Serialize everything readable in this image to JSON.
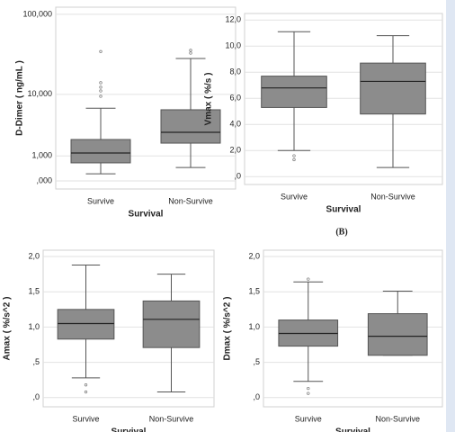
{
  "chart_data": [
    {
      "type": "box",
      "caption": null,
      "x_label": "Survival",
      "y_label": "D-Dimer ( ng/mL )",
      "categories": [
        "Survive",
        "Non-Survive"
      ],
      "yscale": "log",
      "ylim": [
        -200,
        122000
      ],
      "yticks": [
        {
          "value": 0,
          "label": ",000"
        },
        {
          "value": 1000,
          "label": "1,000"
        },
        {
          "value": 10000,
          "label": "10,000"
        },
        {
          "value": 100000,
          "label": "100,000"
        }
      ],
      "grid": true,
      "color": "#8c8c8c",
      "boxes": [
        {
          "min": 220,
          "q1": 650,
          "median": 1170,
          "q3": 2150,
          "max": 6500,
          "outliers": [
            9420,
            11100,
            12400,
            14170,
            35000
          ]
        },
        {
          "min": 450,
          "q1": 1850,
          "median": 2850,
          "q3": 6180,
          "max": 28700,
          "outliers": [
            33500,
            36240
          ]
        }
      ]
    },
    {
      "type": "box",
      "caption": "(B)",
      "x_label": "Survival",
      "y_label": "Vmax ( %/s )",
      "categories": [
        "Survive",
        "Non-Survive"
      ],
      "ylim": [
        -0.6,
        12.5
      ],
      "yticks": [
        {
          "value": 0,
          "label": ",0"
        },
        {
          "value": 2,
          "label": "2,0"
        },
        {
          "value": 4,
          "label": "4,0"
        },
        {
          "value": 6,
          "label": "6,0"
        },
        {
          "value": 8,
          "label": "8,0"
        },
        {
          "value": 10,
          "label": "10,0"
        },
        {
          "value": 12,
          "label": "12,0"
        }
      ],
      "grid": true,
      "color": "#8c8c8c",
      "boxes": [
        {
          "min": 2.0,
          "q1": 5.3,
          "median": 6.8,
          "q3": 7.7,
          "max": 11.1,
          "outliers": [
            1.3,
            1.6
          ]
        },
        {
          "min": 0.7,
          "q1": 4.8,
          "median": 7.3,
          "q3": 8.7,
          "max": 10.8,
          "outliers": []
        }
      ]
    },
    {
      "type": "box",
      "caption": null,
      "x_label": "Survival",
      "y_label": "Amax ( %/s^2 )",
      "categories": [
        "Survive",
        "Non-Survive"
      ],
      "ylim": [
        -0.13,
        2.09
      ],
      "yticks": [
        {
          "value": 0,
          "label": ",0"
        },
        {
          "value": 0.5,
          "label": ",5"
        },
        {
          "value": 1,
          "label": "1,0"
        },
        {
          "value": 1.5,
          "label": "1,5"
        },
        {
          "value": 2,
          "label": "2,0"
        }
      ],
      "grid": true,
      "color": "#8c8c8c",
      "boxes": [
        {
          "min": 0.28,
          "q1": 0.83,
          "median": 1.05,
          "q3": 1.25,
          "max": 1.88,
          "outliers": [
            0.08,
            0.18
          ]
        },
        {
          "min": 0.08,
          "q1": 0.71,
          "median": 1.11,
          "q3": 1.37,
          "max": 1.75,
          "outliers": []
        }
      ]
    },
    {
      "type": "box",
      "caption": null,
      "x_label": "Survival",
      "y_label": "Dmax ( %/s^2 )",
      "categories": [
        "Survive",
        "Non-Survive"
      ],
      "ylim": [
        -0.13,
        2.09
      ],
      "yticks": [
        {
          "value": 0,
          "label": ",0"
        },
        {
          "value": 0.5,
          "label": ",5"
        },
        {
          "value": 1,
          "label": "1,0"
        },
        {
          "value": 1.5,
          "label": "1,5"
        },
        {
          "value": 2,
          "label": "2,0"
        }
      ],
      "grid": true,
      "color": "#8c8c8c",
      "boxes": [
        {
          "min": 0.23,
          "q1": 0.73,
          "median": 0.91,
          "q3": 1.1,
          "max": 1.64,
          "outliers": [
            0.06,
            0.13,
            1.68
          ]
        },
        {
          "min": 0.6,
          "q1": 0.6,
          "median": 0.87,
          "q3": 1.19,
          "max": 1.51,
          "outliers": []
        }
      ]
    }
  ]
}
